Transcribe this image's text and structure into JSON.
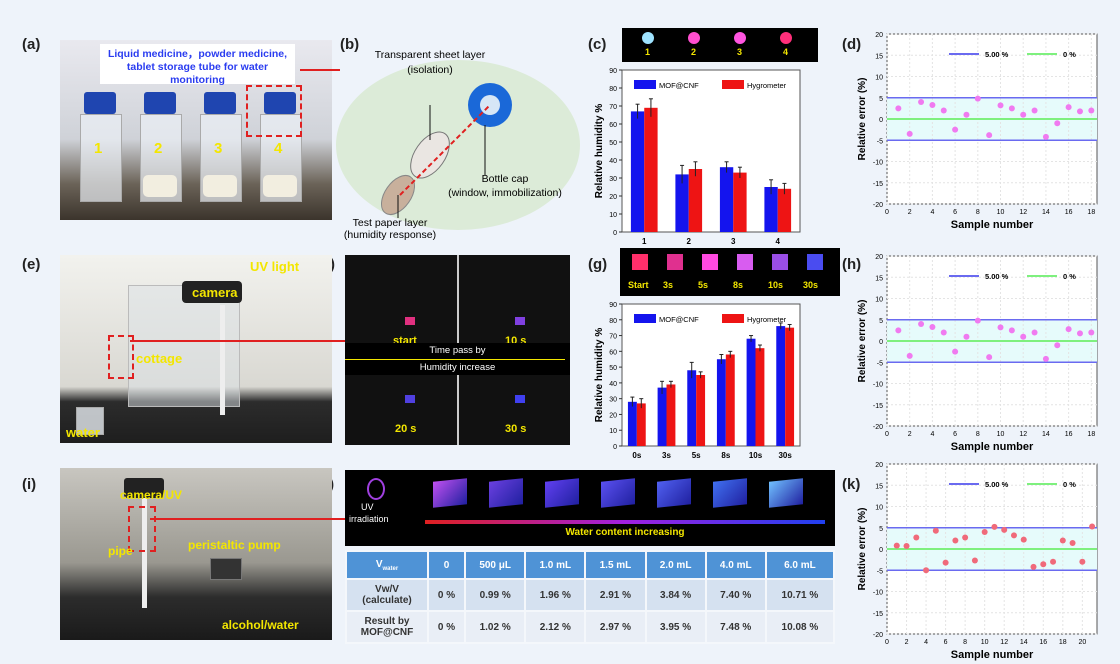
{
  "panel_labels": [
    "(a)",
    "(b)",
    "(c)",
    "(d)",
    "(e)",
    "(f)",
    "(g)",
    "(h)",
    "(i)",
    "(j)",
    "(k)"
  ],
  "a": {
    "caption": "Liquid medicine，powder medicine, tablet storage tube for water monitoring",
    "vials": [
      "1",
      "2",
      "3",
      "4"
    ]
  },
  "b": {
    "sheet": "Transparent sheet layer",
    "sheet_sub": "(isolation)",
    "cap": "Bottle cap",
    "cap_sub": "(window, immobilization)",
    "paper": "Test paper layer",
    "paper_sub": "(humidity response)"
  },
  "c": {
    "strip": [
      "1",
      "2",
      "3",
      "4"
    ],
    "strip_colors": [
      "#9fe3ff",
      "#ff4fd0",
      "#ff55e0",
      "#ff2f7a"
    ]
  },
  "e": {
    "uv": "UV light",
    "camera": "camera",
    "cottage": "cottage",
    "water": "water"
  },
  "f": {
    "times": [
      "start",
      "10 s",
      "20 s",
      "30 s"
    ],
    "arrow1": "Time pass by",
    "arrow2": "Humidity increase"
  },
  "g": {
    "strip": [
      "Start",
      "3s",
      "5s",
      "8s",
      "10s",
      "30s"
    ],
    "strip_colors": [
      "#ff2f6a",
      "#e0308f",
      "#ff4ae0",
      "#d85cf0",
      "#9a4ee6",
      "#4a4cf0"
    ]
  },
  "i": {
    "camera": "camera/UV",
    "pipe": "pipe",
    "pump": "peristaltic pump",
    "solvent": "alcohol/water"
  },
  "j": {
    "uv": "UV",
    "uv2": "irradiation",
    "arrow": "Water content increasing",
    "header": [
      "V",
      "water",
      "0",
      "500 μL",
      "1.0 mL",
      "1.5 mL",
      "2.0 mL",
      "4.0 mL",
      "6.0 mL"
    ],
    "row1_label": [
      "Vw/V",
      "(calculate)"
    ],
    "row1": [
      "0 %",
      "0.99 %",
      "1.96 %",
      "2.91 %",
      "3.84 %",
      "7.40 %",
      "10.71 %"
    ],
    "row2_label": [
      "Result by",
      "MOF@CNF"
    ],
    "row2": [
      "0 %",
      "1.02 %",
      "2.12 %",
      "2.97 %",
      "3.95 %",
      "7.48 %",
      "10.08 %"
    ]
  },
  "colors": {
    "mof": "#1414ee",
    "hyg": "#ee1414",
    "band": "#6a6af0",
    "zero": "#7ef07e",
    "point": "#f07af0",
    "point_k": "#f06a7a"
  },
  "chart_data": [
    {
      "id": "c",
      "type": "bar",
      "categories": [
        "1",
        "2",
        "3",
        "4"
      ],
      "ylabel": "Relative humidity %",
      "ylim": [
        0,
        90
      ],
      "yticks": [
        0,
        10,
        20,
        30,
        40,
        50,
        60,
        70,
        80,
        90
      ],
      "legend": "top",
      "series": [
        {
          "name": "MOF@CNF",
          "values": [
            67,
            32,
            36,
            25
          ],
          "errors": [
            4,
            5,
            3,
            4
          ]
        },
        {
          "name": "Hygrometer",
          "values": [
            69,
            35,
            33,
            24
          ],
          "errors": [
            5,
            4,
            3,
            3
          ]
        }
      ]
    },
    {
      "id": "d",
      "type": "scatter",
      "xlabel": "Sample number",
      "ylabel": "Relative error (%)",
      "xlim": [
        0,
        18.5
      ],
      "ylim": [
        -20,
        20
      ],
      "xticks": [
        0,
        2,
        4,
        6,
        8,
        10,
        12,
        14,
        16,
        18
      ],
      "yticks": [
        -20,
        -15,
        -10,
        -5,
        0,
        5,
        10,
        15,
        20
      ],
      "grid": true,
      "legend": "top-right",
      "lines": [
        {
          "name": "5.00 %",
          "values": [
            5,
            -5
          ]
        },
        {
          "name": "0 %",
          "values": [
            0
          ]
        }
      ],
      "x": [
        1,
        2,
        3,
        4,
        5,
        6,
        7,
        8,
        9,
        10,
        11,
        12,
        13,
        14,
        15,
        16,
        17,
        18
      ],
      "y": [
        2.5,
        -3.5,
        4,
        3.3,
        2,
        -2.5,
        1,
        4.8,
        -3.8,
        3.2,
        2.5,
        1,
        2,
        -4.2,
        -1,
        2.8,
        1.8,
        2
      ]
    },
    {
      "id": "g",
      "type": "bar",
      "categories": [
        "0s",
        "3s",
        "5s",
        "8s",
        "10s",
        "30s"
      ],
      "ylabel": "Relative humidity %",
      "ylim": [
        0,
        90
      ],
      "yticks": [
        0,
        10,
        20,
        30,
        40,
        50,
        60,
        70,
        80,
        90
      ],
      "legend": "top",
      "series": [
        {
          "name": "MOF@CNF",
          "values": [
            28,
            37,
            48,
            55,
            68,
            76
          ],
          "errors": [
            3,
            4,
            5,
            3,
            2,
            2
          ]
        },
        {
          "name": "Hygrometer",
          "values": [
            27,
            39,
            45,
            58,
            62,
            75
          ],
          "errors": [
            3,
            2,
            2,
            2,
            2,
            2
          ]
        }
      ]
    },
    {
      "id": "h",
      "type": "scatter",
      "xlabel": "Sample number",
      "ylabel": "Relative error (%)",
      "xlim": [
        0,
        18.5
      ],
      "ylim": [
        -20,
        20
      ],
      "xticks": [
        0,
        2,
        4,
        6,
        8,
        10,
        12,
        14,
        16,
        18
      ],
      "yticks": [
        -20,
        -15,
        -10,
        -5,
        0,
        5,
        10,
        15,
        20
      ],
      "grid": true,
      "legend": "top-right",
      "lines": [
        {
          "name": "5.00 %",
          "values": [
            5,
            -5
          ]
        },
        {
          "name": "0 %",
          "values": [
            0
          ]
        }
      ],
      "x": [
        1,
        2,
        3,
        4,
        5,
        6,
        7,
        8,
        9,
        10,
        11,
        12,
        13,
        14,
        15,
        16,
        17,
        18
      ],
      "y": [
        2.5,
        -3.5,
        4,
        3.3,
        2,
        -2.5,
        1,
        4.8,
        -3.8,
        3.2,
        2.5,
        1,
        2,
        -4.2,
        -1,
        2.8,
        1.8,
        2
      ]
    },
    {
      "id": "k",
      "type": "scatter",
      "xlabel": "Sample number",
      "ylabel": "Relative error (%)",
      "xlim": [
        0,
        21.5
      ],
      "ylim": [
        -20,
        20
      ],
      "xticks": [
        0,
        2,
        4,
        6,
        8,
        10,
        12,
        14,
        16,
        18,
        20
      ],
      "yticks": [
        -20,
        -15,
        -10,
        -5,
        0,
        5,
        10,
        15,
        20
      ],
      "grid": true,
      "legend": "top-right",
      "lines": [
        {
          "name": "5.00 %",
          "values": [
            5,
            -5
          ]
        },
        {
          "name": "0 %",
          "values": [
            0
          ]
        }
      ],
      "x": [
        1,
        2,
        3,
        4,
        5,
        6,
        7,
        8,
        9,
        10,
        11,
        12,
        13,
        14,
        15,
        16,
        17,
        18,
        19,
        20,
        21
      ],
      "y": [
        0.8,
        0.7,
        2.7,
        -5,
        4.3,
        -3.2,
        2,
        2.7,
        -2.7,
        4,
        5.2,
        4.5,
        3.2,
        2.2,
        -4.2,
        -3.6,
        -3,
        2,
        1.4,
        -3,
        5.3
      ]
    }
  ]
}
